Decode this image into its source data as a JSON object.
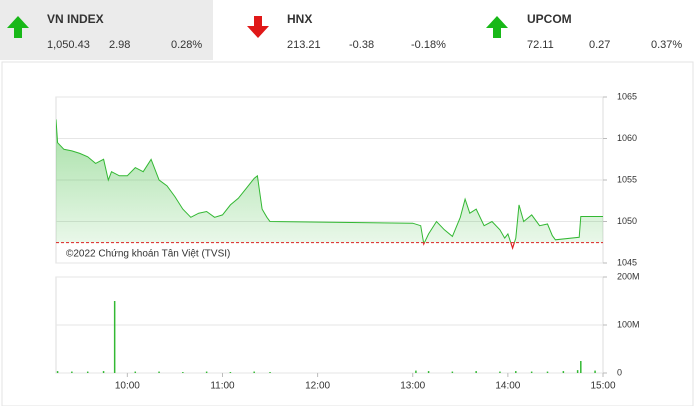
{
  "tickers": [
    {
      "name": "VN INDEX",
      "value": "1,050.43",
      "change": "2.98",
      "percent": "0.28%",
      "trend": "up"
    },
    {
      "name": "HNX",
      "value": "213.21",
      "change": "-0.38",
      "percent": "-0.18%",
      "trend": "down"
    },
    {
      "name": "UPCOM",
      "value": "72.11",
      "change": "0.27",
      "percent": "0.37%",
      "trend": "up"
    }
  ],
  "chart_data": [
    {
      "type": "area",
      "watermark": "©2022 Chứng khoán Tân Việt (TVSI)",
      "color": "#33b833",
      "below_color": "#dd2222",
      "baseline": 1047.45,
      "baseline_color": "#dd2222",
      "xlim": [
        "09:15",
        "15:00"
      ],
      "ylim": [
        1045,
        1065
      ],
      "yticks": [
        1045,
        1050,
        1055,
        1060,
        1065
      ],
      "grid": true,
      "x": [
        "09:15",
        "09:16",
        "09:20",
        "09:25",
        "09:30",
        "09:35",
        "09:40",
        "09:45",
        "09:48",
        "09:50",
        "09:55",
        "10:00",
        "10:05",
        "10:10",
        "10:15",
        "10:20",
        "10:25",
        "10:30",
        "10:35",
        "10:40",
        "10:45",
        "10:50",
        "10:55",
        "11:00",
        "11:05",
        "11:10",
        "11:15",
        "11:20",
        "11:22",
        "11:25",
        "11:28",
        "11:30",
        "13:00",
        "13:05",
        "13:07",
        "13:10",
        "13:15",
        "13:20",
        "13:25",
        "13:30",
        "13:33",
        "13:36",
        "13:40",
        "13:45",
        "13:50",
        "13:55",
        "13:58",
        "14:00",
        "14:03",
        "14:05",
        "14:07",
        "14:10",
        "14:15",
        "14:20",
        "14:25",
        "14:28",
        "14:30",
        "14:45",
        "14:46",
        "15:00"
      ],
      "values": [
        1062.3,
        1059.5,
        1058.7,
        1058.5,
        1058.2,
        1057.8,
        1057,
        1057.5,
        1055,
        1056,
        1055.5,
        1055.5,
        1056.5,
        1056,
        1057.5,
        1055,
        1054.3,
        1053,
        1051.5,
        1050.5,
        1051,
        1051.2,
        1050.5,
        1050.8,
        1052,
        1052.8,
        1054,
        1055.2,
        1055.5,
        1051.5,
        1050.5,
        1050,
        1049.8,
        1049.5,
        1047.3,
        1048.5,
        1050,
        1049,
        1048.2,
        1050.5,
        1052.7,
        1051,
        1051.5,
        1049.5,
        1050,
        1049,
        1048,
        1048.5,
        1046.8,
        1048,
        1052,
        1050,
        1050.8,
        1049.5,
        1049.7,
        1048.3,
        1047.8,
        1048.1,
        1050.6,
        1050.6
      ]
    },
    {
      "type": "bar",
      "color": "#33b833",
      "xlim": [
        "09:15",
        "15:00"
      ],
      "xticks": [
        "10:00",
        "11:00",
        "12:00",
        "13:00",
        "14:00",
        "15:00"
      ],
      "ylim": [
        0,
        200000000
      ],
      "yticks": [
        0,
        {
          "value": 100000000,
          "label": "100M"
        },
        {
          "value": 200000000,
          "label": "200M"
        }
      ],
      "grid": true,
      "x": [
        "09:16",
        "09:25",
        "09:35",
        "09:45",
        "09:52",
        "10:05",
        "10:20",
        "10:35",
        "10:50",
        "11:05",
        "11:20",
        "11:30",
        "13:02",
        "13:10",
        "13:25",
        "13:40",
        "13:55",
        "14:05",
        "14:15",
        "14:25",
        "14:35",
        "14:44",
        "14:46",
        "14:55"
      ],
      "values": [
        4000000,
        3000000,
        3000000,
        4000000,
        150000000,
        3000000,
        3000000,
        2000000,
        3000000,
        2000000,
        3000000,
        2000000,
        5000000,
        4000000,
        3000000,
        4000000,
        3000000,
        4000000,
        3000000,
        3000000,
        4000000,
        6000000,
        25000000,
        5000000
      ]
    }
  ]
}
